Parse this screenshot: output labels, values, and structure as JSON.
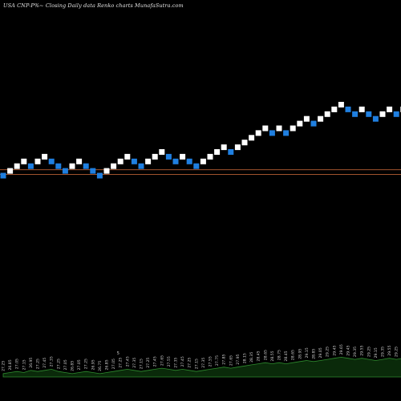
{
  "chart_data": {
    "type": "renko",
    "title": "USA CNP-P%~  Closing Daily data  Renko  charts MunafaSutra.com",
    "price_lines": [
      {
        "value": 26.95,
        "color": "#a0522d"
      },
      {
        "value": 26.75,
        "color": "#a0522d"
      }
    ],
    "bricks": [
      {
        "close": 26.7,
        "dir": "down"
      },
      {
        "close": 26.9,
        "dir": "up"
      },
      {
        "close": 27.1,
        "dir": "up"
      },
      {
        "close": 27.3,
        "dir": "up"
      },
      {
        "close": 27.1,
        "dir": "down"
      },
      {
        "close": 27.3,
        "dir": "up"
      },
      {
        "close": 27.5,
        "dir": "up"
      },
      {
        "close": 27.3,
        "dir": "down"
      },
      {
        "close": 27.1,
        "dir": "down"
      },
      {
        "close": 26.9,
        "dir": "down"
      },
      {
        "close": 27.1,
        "dir": "up"
      },
      {
        "close": 27.3,
        "dir": "up"
      },
      {
        "close": 27.1,
        "dir": "down"
      },
      {
        "close": 26.9,
        "dir": "down"
      },
      {
        "close": 26.7,
        "dir": "down"
      },
      {
        "close": 26.9,
        "dir": "up"
      },
      {
        "close": 27.1,
        "dir": "up"
      },
      {
        "close": 27.3,
        "dir": "up"
      },
      {
        "close": 27.5,
        "dir": "up"
      },
      {
        "close": 27.3,
        "dir": "down"
      },
      {
        "close": 27.1,
        "dir": "down"
      },
      {
        "close": 27.3,
        "dir": "up"
      },
      {
        "close": 27.5,
        "dir": "up"
      },
      {
        "close": 27.7,
        "dir": "up"
      },
      {
        "close": 27.5,
        "dir": "down"
      },
      {
        "close": 27.3,
        "dir": "down"
      },
      {
        "close": 27.5,
        "dir": "up"
      },
      {
        "close": 27.3,
        "dir": "down"
      },
      {
        "close": 27.1,
        "dir": "down"
      },
      {
        "close": 27.3,
        "dir": "up"
      },
      {
        "close": 27.5,
        "dir": "up"
      },
      {
        "close": 27.7,
        "dir": "up"
      },
      {
        "close": 27.9,
        "dir": "up"
      },
      {
        "close": 27.7,
        "dir": "down"
      },
      {
        "close": 27.9,
        "dir": "up"
      },
      {
        "close": 28.1,
        "dir": "up"
      },
      {
        "close": 28.3,
        "dir": "up"
      },
      {
        "close": 28.5,
        "dir": "up"
      },
      {
        "close": 28.7,
        "dir": "up"
      },
      {
        "close": 28.5,
        "dir": "down"
      },
      {
        "close": 28.7,
        "dir": "up"
      },
      {
        "close": 28.5,
        "dir": "down"
      },
      {
        "close": 28.7,
        "dir": "up"
      },
      {
        "close": 28.9,
        "dir": "up"
      },
      {
        "close": 29.1,
        "dir": "up"
      },
      {
        "close": 28.9,
        "dir": "down"
      },
      {
        "close": 29.1,
        "dir": "up"
      },
      {
        "close": 29.3,
        "dir": "up"
      },
      {
        "close": 29.5,
        "dir": "up"
      },
      {
        "close": 29.7,
        "dir": "up"
      },
      {
        "close": 29.5,
        "dir": "down"
      },
      {
        "close": 29.3,
        "dir": "down"
      },
      {
        "close": 29.5,
        "dir": "up"
      },
      {
        "close": 29.3,
        "dir": "down"
      },
      {
        "close": 29.1,
        "dir": "down"
      },
      {
        "close": 29.3,
        "dir": "up"
      },
      {
        "close": 29.5,
        "dir": "up"
      },
      {
        "close": 29.3,
        "dir": "down"
      },
      {
        "close": 29.5,
        "dir": "up"
      },
      {
        "close": 29.7,
        "dir": "up"
      },
      {
        "close": 29.9,
        "dir": "up"
      },
      {
        "close": 29.7,
        "dir": "down"
      },
      {
        "close": 29.9,
        "dir": "up"
      },
      {
        "close": 29.7,
        "dir": "down"
      },
      {
        "close": 29.5,
        "dir": "down"
      }
    ],
    "colors": {
      "up": "#ffffff",
      "down": "#1f7fe0",
      "price_line": "#a0522d"
    },
    "volume": {
      "labels": [
        "27.25",
        "26.85",
        "27.05",
        "27.15",
        "26.95",
        "27.25",
        "27.45",
        "27.35",
        "27.25",
        "27.05",
        "26.85",
        "27.05",
        "27.25",
        "26.95",
        "26.75",
        "26.85",
        "27.05",
        "27.25",
        "27.45",
        "27.35",
        "27.15",
        "27.25",
        "27.45",
        "27.65",
        "27.55",
        "27.35",
        "27.45",
        "27.25",
        "27.15",
        "27.35",
        "27.55",
        "27.75",
        "27.85",
        "27.65",
        "27.95",
        "28.15",
        "28.35",
        "28.45",
        "28.65",
        "28.55",
        "28.75",
        "28.45",
        "28.65",
        "28.95",
        "29.15",
        "28.85",
        "29.05",
        "29.25",
        "29.45",
        "29.65",
        "29.45",
        "29.35",
        "29.55",
        "29.25",
        "29.15",
        "29.35",
        "29.55",
        "29.25",
        "29.45",
        "29.75",
        "29.95",
        "29.65",
        "29.85",
        "29.75",
        "29.55"
      ],
      "values": [
        3,
        4,
        5,
        4,
        6,
        5,
        6,
        7,
        5,
        4,
        3,
        4,
        5,
        4,
        3,
        4,
        5,
        6,
        7,
        6,
        5,
        6,
        7,
        8,
        7,
        6,
        7,
        6,
        5,
        6,
        7,
        8,
        9,
        8,
        9,
        10,
        11,
        12,
        13,
        12,
        13,
        12,
        13,
        14,
        15,
        14,
        15,
        16,
        17,
        18,
        17,
        16,
        17,
        16,
        15,
        16,
        17,
        16,
        17,
        18,
        19,
        18,
        19,
        18,
        17
      ],
      "marker_text": "5",
      "fill": "#0a2a0a",
      "stroke": "#2e8b2e"
    }
  }
}
